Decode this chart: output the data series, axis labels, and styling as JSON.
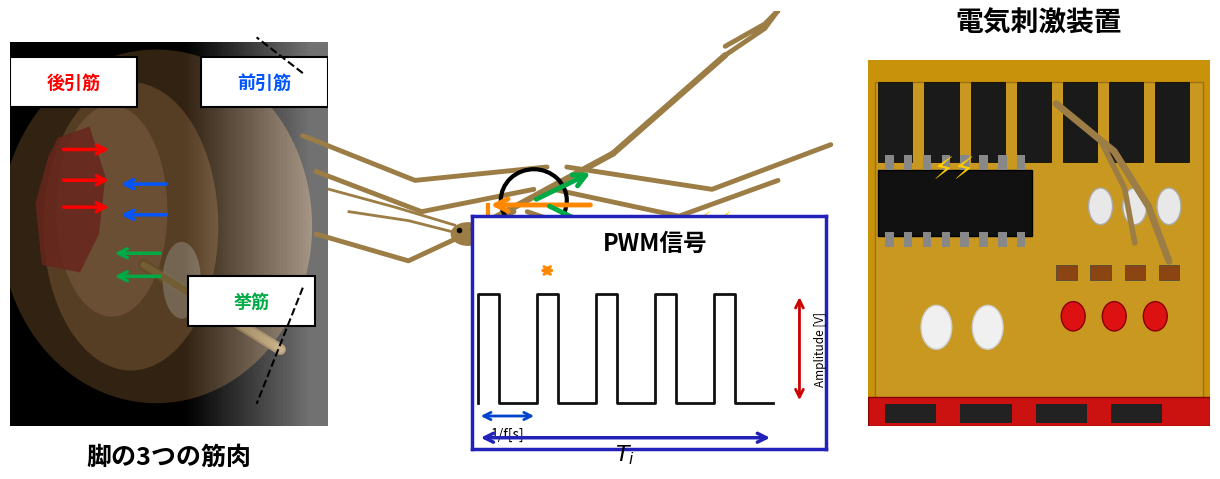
{
  "title_right": "電気刺激装置",
  "title_left_bottom": "脚の3つの筋肉",
  "label_koubiki": "後引筋",
  "label_maebiki": "前引筋",
  "label_kyokin": "挙筋",
  "pwm_title": "PWM信号",
  "pwm_xlabel": "1/f[s]",
  "pwm_ylabel": "Amplitude [V]",
  "color_koubiki": "#ff0000",
  "color_maebiki": "#0055ff",
  "color_kyokin": "#00aa44",
  "color_arrow_orange": "#ff8800",
  "color_arrow_green": "#00aa44",
  "color_pwm_box": "#2222bb",
  "color_pwm_signal": "#111111",
  "color_Ti_arrow": "#2222bb",
  "color_1f_arrow": "#0044cc",
  "color_amp_arrow": "#cc0000",
  "bg_color": "#ffffff",
  "insect_color": "#9b7d45",
  "insect_lw": 3.5,
  "left_photo_bg": "#1a1008",
  "left_photo_body": "#a07848",
  "left_photo_leg": "#c8a060"
}
